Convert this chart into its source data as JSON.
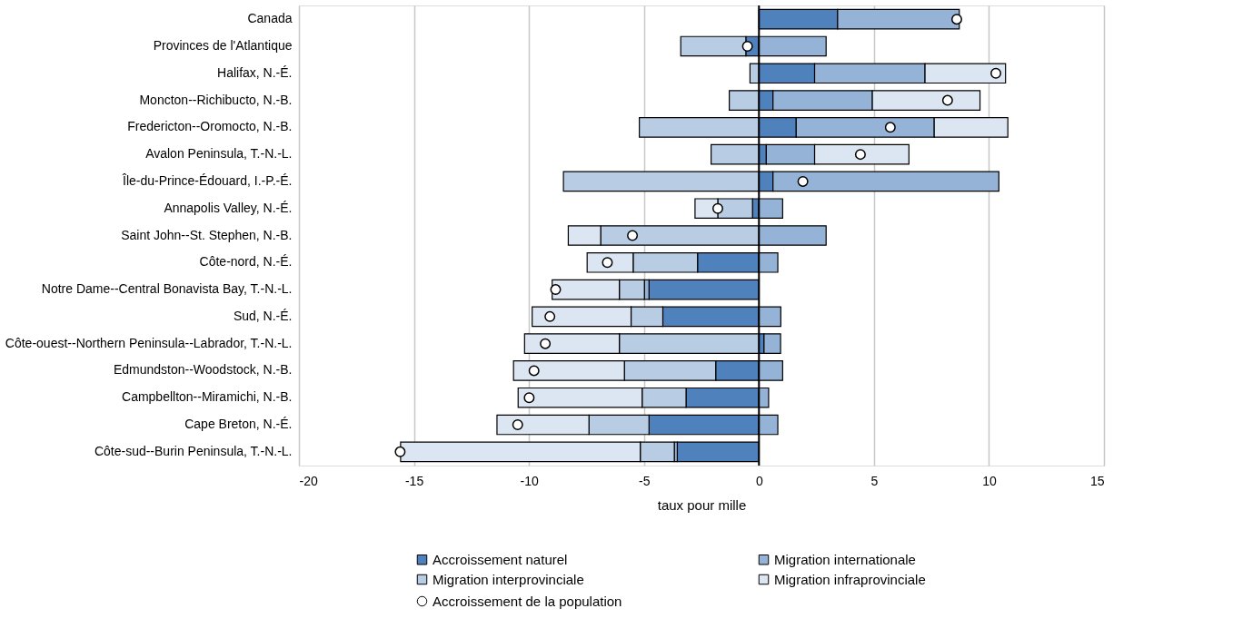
{
  "chart_data": {
    "type": "bar",
    "orientation": "horizontal",
    "stacked": true,
    "xlabel": "taux pour mille",
    "categories": [
      "Canada",
      "Provinces de l'Atlantique",
      "Halifax, N.-É.",
      "Moncton--Richibucto, N.-B.",
      "Fredericton--Oromocto, N.-B.",
      "Avalon Peninsula, T.-N.-L.",
      "Île-du-Prince-Édouard, I.-P.-É.",
      "Annapolis Valley, N.-É.",
      "Saint John--St. Stephen, N.-B.",
      "Côte-nord, N.-É.",
      "Notre Dame--Central Bonavista Bay, T.-N.-L.",
      "Sud, N.-É.",
      "Côte-ouest--Northern Peninsula--Labrador, T.-N.-L.",
      "Edmundston--Woodstock, N.-B.",
      "Campbellton--Miramichi, N.-B.",
      "Cape Breton, N.-É.",
      "Côte-sud--Burin Peninsula, T.-N.-L."
    ],
    "series": [
      {
        "name": "Accroissement naturel",
        "color": "#4f81bd",
        "values": [
          3.42,
          -0.57,
          2.42,
          0.61,
          1.62,
          0.32,
          0.61,
          -0.28,
          null,
          -2.67,
          -4.78,
          -4.18,
          0.22,
          -1.88,
          -3.17,
          -4.78,
          -3.55
        ]
      },
      {
        "name": "Migration internationale",
        "color": "#95b3d7",
        "values": [
          5.29,
          2.92,
          4.8,
          4.32,
          6.0,
          2.1,
          9.82,
          1.03,
          2.92,
          0.82,
          -0.2,
          0.95,
          0.72,
          1.03,
          0.42,
          0.82,
          -0.13
        ]
      },
      {
        "name": "Migration interprovinciale",
        "color": "#b8cce4",
        "values": [
          null,
          -2.83,
          -0.39,
          -1.29,
          -5.2,
          -2.08,
          -8.5,
          -1.51,
          -6.88,
          -2.8,
          -1.09,
          -1.38,
          -6.07,
          -3.97,
          -1.91,
          -2.61,
          -1.48
        ]
      },
      {
        "name": "Migration infraprovinciale",
        "color": "#dce6f2",
        "values": [
          null,
          null,
          3.5,
          4.68,
          3.2,
          4.1,
          null,
          -0.99,
          -1.41,
          -2.0,
          -2.92,
          -4.3,
          -4.12,
          -4.82,
          -5.39,
          -4.0,
          -10.42
        ]
      },
      {
        "name": "Accroissement de la population",
        "type": "scatter",
        "marker": "circle",
        "color": "#ffffff",
        "values": [
          8.6,
          -0.5,
          10.3,
          8.2,
          5.71,
          4.41,
          1.91,
          -1.79,
          -5.5,
          -6.59,
          -8.84,
          -9.09,
          -9.29,
          -9.78,
          -9.99,
          -10.49,
          -15.6
        ]
      }
    ],
    "xlim": [
      -20,
      15
    ],
    "xticks": [
      -20,
      -15,
      -10,
      -5,
      0,
      5,
      10,
      15
    ],
    "grid": "x",
    "legend": "bottom",
    "ref_lines": [
      {
        "axis": "x",
        "value": 0,
        "color": "#000000"
      }
    ]
  }
}
